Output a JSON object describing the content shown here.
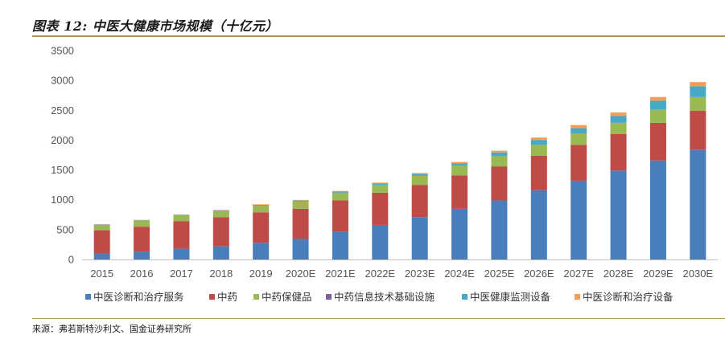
{
  "header": {
    "title": "图表 12: 中医大健康市场规模（十亿元）"
  },
  "footer": {
    "source": "来源：弗若斯特沙利文、国金证券研究所"
  },
  "colors": {
    "rule": "#b89356"
  },
  "chart_data": {
    "type": "bar",
    "stacked": true,
    "categories": [
      "2015",
      "2016",
      "2017",
      "2018",
      "2019",
      "2020E",
      "2021E",
      "2022E",
      "2023E",
      "2024E",
      "2025E",
      "2026E",
      "2027E",
      "2028E",
      "2029E",
      "2030E"
    ],
    "series": [
      {
        "name": "中医诊断和治疗服务",
        "color": "#4a7ebb",
        "values": [
          100,
          130,
          180,
          220,
          280,
          350,
          470,
          580,
          710,
          850,
          990,
          1160,
          1320,
          1490,
          1660,
          1840
        ]
      },
      {
        "name": "中药",
        "color": "#be4b48",
        "values": [
          390,
          420,
          460,
          490,
          510,
          500,
          520,
          540,
          540,
          560,
          570,
          580,
          600,
          610,
          630,
          650
        ]
      },
      {
        "name": "中药保健品",
        "color": "#98b954",
        "values": [
          90,
          100,
          100,
          100,
          110,
          120,
          130,
          130,
          150,
          160,
          170,
          180,
          190,
          190,
          220,
          230
        ]
      },
      {
        "name": "中药信息技术基础设施",
        "color": "#7d60a0",
        "values": [
          3,
          3,
          3,
          3,
          3,
          3,
          3,
          3,
          3,
          3,
          3,
          3,
          3,
          3,
          3,
          3
        ]
      },
      {
        "name": "中医健康监测设备",
        "color": "#46aac5",
        "values": [
          5,
          5,
          5,
          8,
          12,
          15,
          15,
          20,
          30,
          40,
          60,
          80,
          90,
          110,
          150,
          180
        ]
      },
      {
        "name": "中医诊断和治疗设备",
        "color": "#f59d56",
        "values": [
          5,
          5,
          5,
          8,
          10,
          10,
          10,
          15,
          15,
          20,
          30,
          40,
          50,
          60,
          60,
          70
        ]
      }
    ],
    "ylim": [
      0,
      3500
    ],
    "yticks": [
      0,
      500,
      1000,
      1500,
      2000,
      2500,
      3000,
      3500
    ],
    "grid": false,
    "legend": "bottom"
  }
}
